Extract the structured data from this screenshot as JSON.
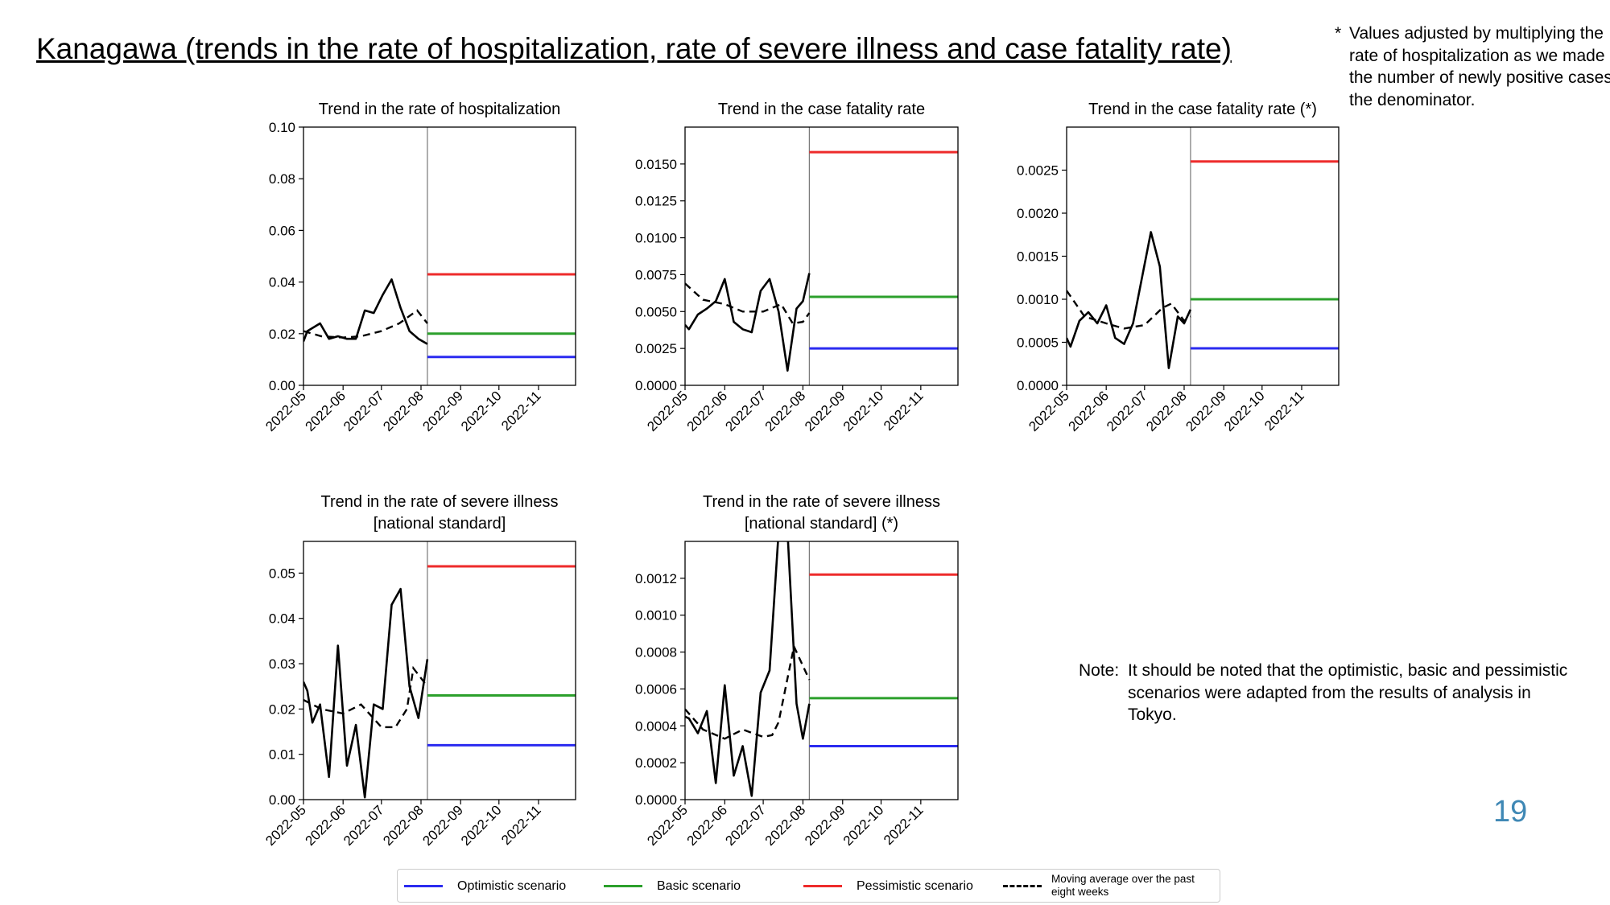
{
  "page": {
    "title": "Kanagawa (trends in the rate of hospitalization, rate of severe illness and case fatality rate)",
    "footnote_marker": "*",
    "footnote_text": "Values adjusted by multiplying the rate of hospitalization as we made the number of newly positive cases the denominator.",
    "note_label": "Note:",
    "note_text": "It should be noted that the optimistic, basic and pessimistic scenarios were adapted from the results of analysis in Tokyo.",
    "page_number": "19"
  },
  "colors": {
    "optimistic": "#2b2bf0",
    "basic": "#2ca02c",
    "pessimistic": "#ee2b2b",
    "observed": "#000000",
    "moving_average": "#000000",
    "divider": "#777777"
  },
  "legend": [
    {
      "label": "Optimistic scenario",
      "color": "#2b2bf0",
      "style": "solid"
    },
    {
      "label": "Basic scenario",
      "color": "#2ca02c",
      "style": "solid"
    },
    {
      "label": "Pessimistic scenario",
      "color": "#ee2b2b",
      "style": "solid"
    },
    {
      "label": "Moving average over the past eight weeks",
      "color": "#000000",
      "style": "dashed"
    }
  ],
  "chart_data": [
    {
      "type": "line",
      "title": [
        "Trend in the rate of hospitalization"
      ],
      "x_ticks": [
        "2022-05",
        "2022-06",
        "2022-07",
        "2022-08",
        "2022-09",
        "2022-10",
        "2022-11"
      ],
      "xlim": [
        "2022-05-01",
        "2022-11-30"
      ],
      "ylim": [
        0,
        0.1
      ],
      "y_ticks": [
        "0.00",
        "0.02",
        "0.04",
        "0.06",
        "0.08",
        "0.10"
      ],
      "divider_date": "2022-08-06",
      "observed": [
        [
          "2022-05-01",
          0.017
        ],
        [
          "2022-05-04",
          0.021
        ],
        [
          "2022-05-14",
          0.024
        ],
        [
          "2022-05-21",
          0.018
        ],
        [
          "2022-05-28",
          0.019
        ],
        [
          "2022-06-04",
          0.018
        ],
        [
          "2022-06-11",
          0.018
        ],
        [
          "2022-06-18",
          0.029
        ],
        [
          "2022-06-25",
          0.028
        ],
        [
          "2022-07-02",
          0.035
        ],
        [
          "2022-07-09",
          0.041
        ],
        [
          "2022-07-16",
          0.03
        ],
        [
          "2022-07-23",
          0.021
        ],
        [
          "2022-07-30",
          0.018
        ],
        [
          "2022-08-06",
          0.016
        ]
      ],
      "moving_average": [
        [
          "2022-05-01",
          0.021
        ],
        [
          "2022-05-15",
          0.019
        ],
        [
          "2022-06-01",
          0.0185
        ],
        [
          "2022-06-15",
          0.019
        ],
        [
          "2022-07-01",
          0.021
        ],
        [
          "2022-07-15",
          0.024
        ],
        [
          "2022-07-29",
          0.029
        ],
        [
          "2022-08-06",
          0.024
        ]
      ],
      "scenarios": {
        "optimistic": 0.011,
        "basic": 0.02,
        "pessimistic": 0.043
      }
    },
    {
      "type": "line",
      "title": [
        "Trend in the case fatality rate"
      ],
      "x_ticks": [
        "2022-05",
        "2022-06",
        "2022-07",
        "2022-08",
        "2022-09",
        "2022-10",
        "2022-11"
      ],
      "xlim": [
        "2022-05-01",
        "2022-11-30"
      ],
      "ylim": [
        0,
        0.0175
      ],
      "y_ticks": [
        "0.0000",
        "0.0025",
        "0.0050",
        "0.0075",
        "0.0100",
        "0.0125",
        "0.0150"
      ],
      "divider_date": "2022-08-06",
      "observed": [
        [
          "2022-05-01",
          0.0041
        ],
        [
          "2022-05-04",
          0.0038
        ],
        [
          "2022-05-11",
          0.0048
        ],
        [
          "2022-05-18",
          0.0052
        ],
        [
          "2022-05-25",
          0.0057
        ],
        [
          "2022-06-01",
          0.0072
        ],
        [
          "2022-06-08",
          0.0043
        ],
        [
          "2022-06-15",
          0.0038
        ],
        [
          "2022-06-22",
          0.0036
        ],
        [
          "2022-06-29",
          0.0064
        ],
        [
          "2022-07-06",
          0.0072
        ],
        [
          "2022-07-13",
          0.005
        ],
        [
          "2022-07-20",
          0.001
        ],
        [
          "2022-07-27",
          0.0052
        ],
        [
          "2022-08-01",
          0.0057
        ],
        [
          "2022-08-06",
          0.0076
        ]
      ],
      "moving_average": [
        [
          "2022-05-01",
          0.0069
        ],
        [
          "2022-05-15",
          0.0058
        ],
        [
          "2022-06-01",
          0.0055
        ],
        [
          "2022-06-15",
          0.005
        ],
        [
          "2022-07-01",
          0.005
        ],
        [
          "2022-07-15",
          0.0055
        ],
        [
          "2022-07-24",
          0.0042
        ],
        [
          "2022-08-01",
          0.0043
        ],
        [
          "2022-08-06",
          0.0049
        ]
      ],
      "scenarios": {
        "optimistic": 0.0025,
        "basic": 0.006,
        "pessimistic": 0.0158
      }
    },
    {
      "type": "line",
      "title": [
        "Trend in the case fatality rate (*)"
      ],
      "x_ticks": [
        "2022-05",
        "2022-06",
        "2022-07",
        "2022-08",
        "2022-09",
        "2022-10",
        "2022-11"
      ],
      "xlim": [
        "2022-05-01",
        "2022-11-30"
      ],
      "ylim": [
        0,
        0.003
      ],
      "y_ticks": [
        "0.0000",
        "0.0005",
        "0.0010",
        "0.0015",
        "0.0020",
        "0.0025"
      ],
      "divider_date": "2022-08-06",
      "observed": [
        [
          "2022-05-01",
          0.00055
        ],
        [
          "2022-05-04",
          0.00045
        ],
        [
          "2022-05-11",
          0.00075
        ],
        [
          "2022-05-18",
          0.00085
        ],
        [
          "2022-05-25",
          0.00072
        ],
        [
          "2022-06-01",
          0.00093
        ],
        [
          "2022-06-08",
          0.00055
        ],
        [
          "2022-06-15",
          0.00048
        ],
        [
          "2022-06-22",
          0.00072
        ],
        [
          "2022-06-29",
          0.00125
        ],
        [
          "2022-07-06",
          0.00178
        ],
        [
          "2022-07-13",
          0.00138
        ],
        [
          "2022-07-20",
          0.0002
        ],
        [
          "2022-07-27",
          0.0008
        ],
        [
          "2022-08-01",
          0.00072
        ],
        [
          "2022-08-06",
          0.00088
        ]
      ],
      "moving_average": [
        [
          "2022-05-01",
          0.0011
        ],
        [
          "2022-05-15",
          0.0008
        ],
        [
          "2022-06-01",
          0.00072
        ],
        [
          "2022-06-15",
          0.00066
        ],
        [
          "2022-07-01",
          0.0007
        ],
        [
          "2022-07-15",
          0.0009
        ],
        [
          "2022-07-22",
          0.00095
        ],
        [
          "2022-08-01",
          0.00075
        ],
        [
          "2022-08-06",
          0.0008
        ]
      ],
      "scenarios": {
        "optimistic": 0.00043,
        "basic": 0.001,
        "pessimistic": 0.0026
      }
    },
    {
      "type": "line",
      "title": [
        "Trend in the rate of severe illness",
        "[national standard]"
      ],
      "x_ticks": [
        "2022-05",
        "2022-06",
        "2022-07",
        "2022-08",
        "2022-09",
        "2022-10",
        "2022-11"
      ],
      "xlim": [
        "2022-05-01",
        "2022-11-30"
      ],
      "ylim": [
        0,
        0.057
      ],
      "y_ticks": [
        "0.00",
        "0.01",
        "0.02",
        "0.03",
        "0.04",
        "0.05"
      ],
      "divider_date": "2022-08-06",
      "observed": [
        [
          "2022-05-01",
          0.026
        ],
        [
          "2022-05-04",
          0.024
        ],
        [
          "2022-05-08",
          0.017
        ],
        [
          "2022-05-14",
          0.021
        ],
        [
          "2022-05-21",
          0.005
        ],
        [
          "2022-05-28",
          0.034
        ],
        [
          "2022-06-04",
          0.0075
        ],
        [
          "2022-06-11",
          0.0165
        ],
        [
          "2022-06-18",
          0.0005
        ],
        [
          "2022-06-25",
          0.021
        ],
        [
          "2022-07-02",
          0.02
        ],
        [
          "2022-07-09",
          0.043
        ],
        [
          "2022-07-16",
          0.0465
        ],
        [
          "2022-07-23",
          0.025
        ],
        [
          "2022-07-30",
          0.018
        ],
        [
          "2022-08-06",
          0.031
        ]
      ],
      "moving_average": [
        [
          "2022-05-01",
          0.022
        ],
        [
          "2022-05-15",
          0.02
        ],
        [
          "2022-06-01",
          0.019
        ],
        [
          "2022-06-15",
          0.021
        ],
        [
          "2022-07-01",
          0.016
        ],
        [
          "2022-07-12",
          0.016
        ],
        [
          "2022-07-21",
          0.02
        ],
        [
          "2022-07-26",
          0.029
        ],
        [
          "2022-08-06",
          0.025
        ]
      ],
      "scenarios": {
        "optimistic": 0.012,
        "basic": 0.023,
        "pessimistic": 0.0515
      }
    },
    {
      "type": "line",
      "title": [
        "Trend in the rate of severe illness",
        "[national standard] (*)"
      ],
      "x_ticks": [
        "2022-05",
        "2022-06",
        "2022-07",
        "2022-08",
        "2022-09",
        "2022-10",
        "2022-11"
      ],
      "xlim": [
        "2022-05-01",
        "2022-11-30"
      ],
      "ylim": [
        0,
        0.0014
      ],
      "y_ticks": [
        "0.0000",
        "0.0002",
        "0.0004",
        "0.0006",
        "0.0008",
        "0.0010",
        "0.0012"
      ],
      "divider_date": "2022-08-06",
      "observed": [
        [
          "2022-05-01",
          0.00045
        ],
        [
          "2022-05-04",
          0.00044
        ],
        [
          "2022-05-11",
          0.00036
        ],
        [
          "2022-05-18",
          0.00048
        ],
        [
          "2022-05-25",
          9e-05
        ],
        [
          "2022-06-01",
          0.00062
        ],
        [
          "2022-06-08",
          0.00013
        ],
        [
          "2022-06-15",
          0.00029
        ],
        [
          "2022-06-22",
          2e-05
        ],
        [
          "2022-06-29",
          0.00058
        ],
        [
          "2022-07-06",
          0.0007
        ],
        [
          "2022-07-13",
          0.00145
        ],
        [
          "2022-07-20",
          0.00145
        ],
        [
          "2022-07-27",
          0.00052
        ],
        [
          "2022-08-01",
          0.00033
        ],
        [
          "2022-08-06",
          0.00052
        ]
      ],
      "moving_average": [
        [
          "2022-05-01",
          0.00049
        ],
        [
          "2022-05-15",
          0.00038
        ],
        [
          "2022-06-01",
          0.00033
        ],
        [
          "2022-06-15",
          0.00038
        ],
        [
          "2022-07-01",
          0.00034
        ],
        [
          "2022-07-08",
          0.00035
        ],
        [
          "2022-07-13",
          0.00042
        ],
        [
          "2022-07-25",
          0.00083
        ],
        [
          "2022-08-06",
          0.00065
        ]
      ],
      "scenarios": {
        "optimistic": 0.00029,
        "basic": 0.00055,
        "pessimistic": 0.00122
      }
    }
  ]
}
